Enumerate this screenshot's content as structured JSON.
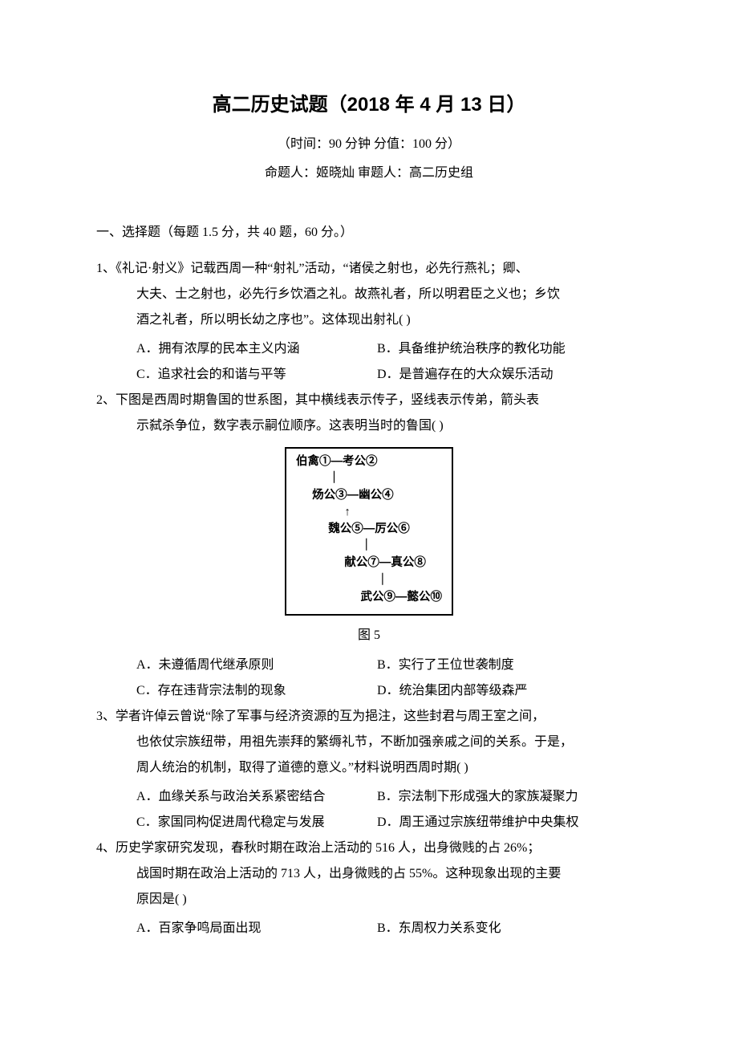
{
  "title": "高二历史试题（2018 年 4 月 13 日）",
  "subtitle": "（时间：90 分钟    分值：100 分）",
  "authors": "命题人：姬晓灿      审题人：高二历史组",
  "section_header": "一、选择题（每题 1.5 分，共 40 题，60 分。）",
  "questions": [
    {
      "num": "1、",
      "lines": [
        "《礼记·射义》记载西周一种“射礼”活动，“诸侯之射也，必先行燕礼；卿、",
        "大夫、士之射也，必先行乡饮酒之礼。故燕礼者，所以明君臣之义也；乡饮",
        "酒之礼者，所以明长幼之序也”。这体现出射礼(      )"
      ],
      "options": [
        {
          "a": "A．拥有浓厚的民本主义内涵",
          "b": "B．具备维护统治秩序的教化功能"
        },
        {
          "a": "C．追求社会的和谐与平等",
          "b": "D．是普遍存在的大众娱乐活动"
        }
      ]
    },
    {
      "num": "2、",
      "lines": [
        "下图是西周时期鲁国的世系图，其中横线表示传子，竖线表示传弟，箭头表",
        "示弑杀争位，数字表示嗣位顺序。这表明当时的鲁国(      )"
      ],
      "diagram": {
        "rows": [
          "伯禽①—考公②",
          "          ｜",
          "     炀公③—幽公④",
          "               ↑",
          "          魏公⑤—厉公⑥",
          "                    ｜",
          "               献公⑦—真公⑧",
          "                         ｜",
          "                    武公⑨—懿公⑩"
        ],
        "caption": "图 5"
      },
      "options": [
        {
          "a": "A．未遵循周代继承原则",
          "b": "B．实行了王位世袭制度"
        },
        {
          "a": "C．存在违背宗法制的现象",
          "b": "D．统治集团内部等级森严"
        }
      ]
    },
    {
      "num": "3、",
      "lines": [
        "学者许倬云曾说“除了军事与经济资源的互为挹注，这些封君与周王室之间，",
        "也依仗宗族纽带，用祖先崇拜的繁缛礼节，不断加强亲戚之间的关系。于是，",
        "周人统治的机制，取得了道德的意义。”材料说明西周时期(      )"
      ],
      "options": [
        {
          "a": "A．血缘关系与政治关系紧密结合",
          "b": "B．宗法制下形成强大的家族凝聚力"
        },
        {
          "a": "C．家国同构促进周代稳定与发展",
          "b": "D．周王通过宗族纽带维护中央集权"
        }
      ]
    },
    {
      "num": "4、",
      "lines": [
        "历史学家研究发现，春秋时期在政治上活动的 516 人，出身微贱的占 26%；",
        "战国时期在政治上活动的 713 人，出身微贱的占 55%。这种现象出现的主要",
        "原因是(      )"
      ],
      "options": [
        {
          "a": "A．百家争鸣局面出现",
          "b": "B．东周权力关系变化"
        }
      ]
    }
  ]
}
